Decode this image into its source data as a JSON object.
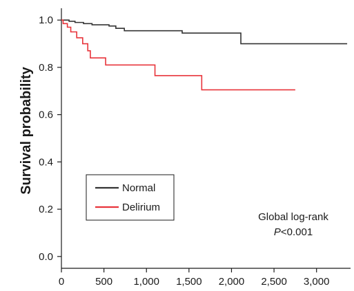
{
  "chart_data": {
    "type": "line",
    "title": "",
    "xlabel": "",
    "ylabel": "Survival probability",
    "xlim": [
      0,
      3400
    ],
    "ylim": [
      -0.05,
      1.05
    ],
    "xticks": [
      0,
      500,
      1000,
      1500,
      2000,
      2500,
      3000
    ],
    "xtick_labels": [
      "0",
      "500",
      "1,000",
      "1,500",
      "2,000",
      "2,500",
      "3,000"
    ],
    "yticks": [
      0.0,
      0.2,
      0.4,
      0.6,
      0.8,
      1.0
    ],
    "ytick_labels": [
      "0.0",
      "0.2",
      "0.4",
      "0.6",
      "0.8",
      "1.0"
    ],
    "grid": false,
    "legend_position": "lower-left",
    "series": [
      {
        "name": "Normal",
        "color": "#333333",
        "step": true,
        "points": [
          [
            0,
            1.0
          ],
          [
            90,
            0.995
          ],
          [
            160,
            0.99
          ],
          [
            260,
            0.985
          ],
          [
            360,
            0.98
          ],
          [
            560,
            0.975
          ],
          [
            640,
            0.965
          ],
          [
            740,
            0.955
          ],
          [
            1420,
            0.945
          ],
          [
            2110,
            0.9
          ],
          [
            3360,
            0.9
          ]
        ]
      },
      {
        "name": "Delirium",
        "color": "#e8333a",
        "step": true,
        "points": [
          [
            0,
            1.0
          ],
          [
            20,
            0.985
          ],
          [
            70,
            0.97
          ],
          [
            110,
            0.95
          ],
          [
            180,
            0.925
          ],
          [
            250,
            0.9
          ],
          [
            310,
            0.87
          ],
          [
            340,
            0.84
          ],
          [
            520,
            0.81
          ],
          [
            1100,
            0.765
          ],
          [
            1650,
            0.705
          ],
          [
            2750,
            0.705
          ]
        ]
      }
    ],
    "annotations": [
      {
        "text": "Global log-rank",
        "italic_prefix": "",
        "suffix": ""
      },
      {
        "text": "<0.001",
        "italic_prefix": "P",
        "suffix": ""
      }
    ]
  }
}
